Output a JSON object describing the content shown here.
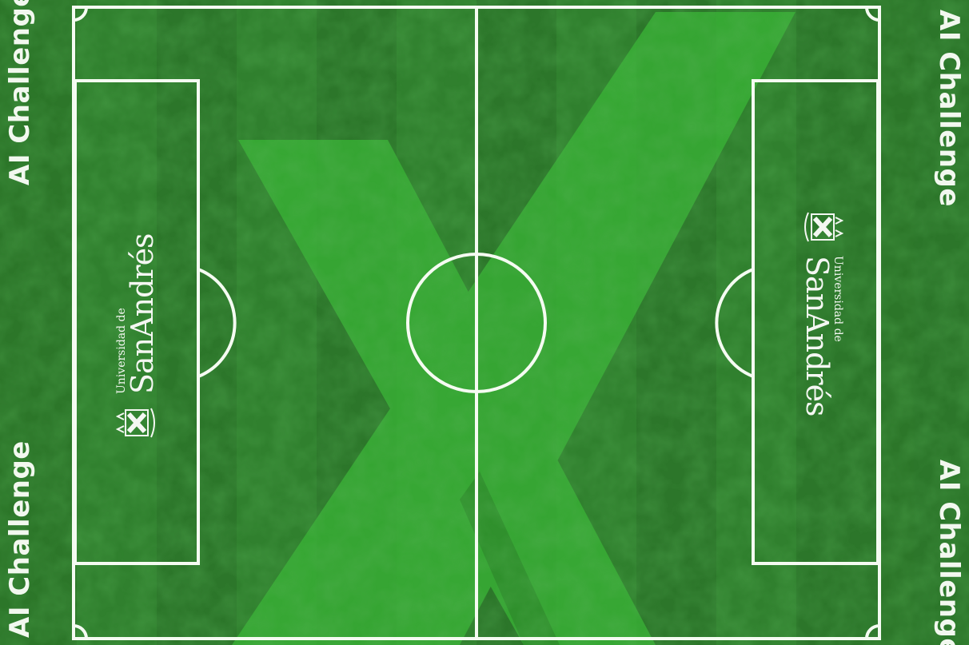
{
  "brand": {
    "side_label": "AI Challenge",
    "university_prefix": "Universidad de",
    "university_name": "SanAndrés"
  },
  "colors": {
    "grass_dark": "#2a6f28",
    "grass_mid": "#2f7d2c",
    "grass_light": "#3da83a",
    "x_shape": "#3cb838",
    "lines": "#f5fbf2"
  },
  "icons": {
    "crest": "crest-icon"
  }
}
